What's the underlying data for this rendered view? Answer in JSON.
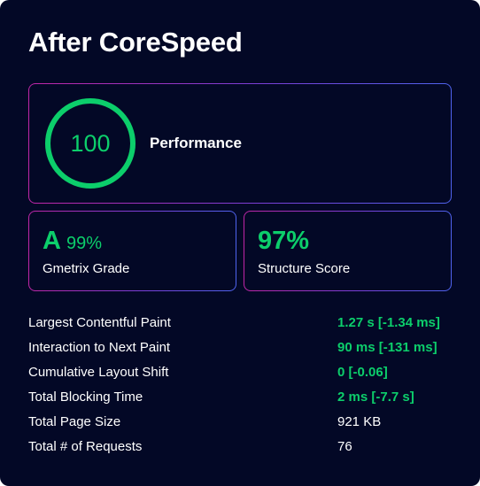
{
  "title": "After CoreSpeed",
  "colors": {
    "background": "#030826",
    "good_green": "#0cce6b",
    "border_start": "#c026a8",
    "border_end": "#4f63ee"
  },
  "performance": {
    "score": "100",
    "score_fraction": 1.0,
    "label": "Performance"
  },
  "gmetrix": {
    "grade": "A",
    "percent": "99%",
    "label": "Gmetrix Grade"
  },
  "structure": {
    "score": "97%",
    "label": "Structure Score"
  },
  "metrics": [
    {
      "label": "Largest Contentful Paint",
      "value": "1.27 s [-1.34 ms]",
      "status": "good"
    },
    {
      "label": "Interaction to Next Paint",
      "value": "90 ms [-131 ms]",
      "status": "good"
    },
    {
      "label": "Cumulative Layout Shift",
      "value": "0 [-0.06]",
      "status": "good"
    },
    {
      "label": "Total Blocking Time",
      "value": "2 ms [-7.7 s]",
      "status": "good"
    },
    {
      "label": "Total Page Size",
      "value": "921 KB",
      "status": "plain"
    },
    {
      "label": "Total # of Requests",
      "value": "76",
      "status": "plain"
    }
  ]
}
